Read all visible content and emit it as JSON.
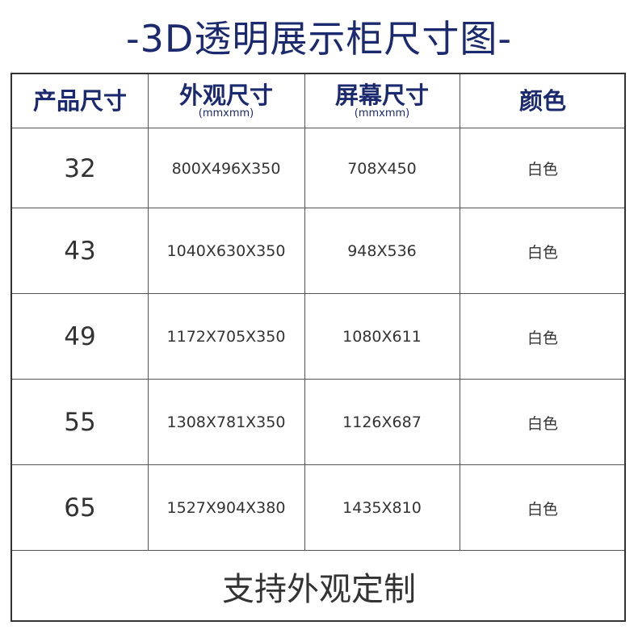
{
  "title": "-3D透明展示柜尺寸图-",
  "headers": [
    {
      "label": "产品尺寸",
      "unit": ""
    },
    {
      "label": "外观尺寸",
      "unit": "(mmxmm)"
    },
    {
      "label": "屏幕尺寸",
      "unit": "(mmxmm)"
    },
    {
      "label": "颜色",
      "unit": ""
    }
  ],
  "rows": [
    {
      "size": "32",
      "exterior": "800X496X350",
      "screen": "708X450",
      "color": "白色"
    },
    {
      "size": "43",
      "exterior": "1040X630X350",
      "screen": "948X536",
      "color": "白色"
    },
    {
      "size": "49",
      "exterior": "1172X705X350",
      "screen": "1080X611",
      "color": "白色"
    },
    {
      "size": "55",
      "exterior": "1308X781X350",
      "screen": "1126X687",
      "color": "白色"
    },
    {
      "size": "65",
      "exterior": "1527X904X380",
      "screen": "1435X810",
      "color": "白色"
    }
  ],
  "footer": "支持外观定制",
  "colors": {
    "title": "#1b2a6e",
    "text": "#333333",
    "border": "#555555"
  }
}
